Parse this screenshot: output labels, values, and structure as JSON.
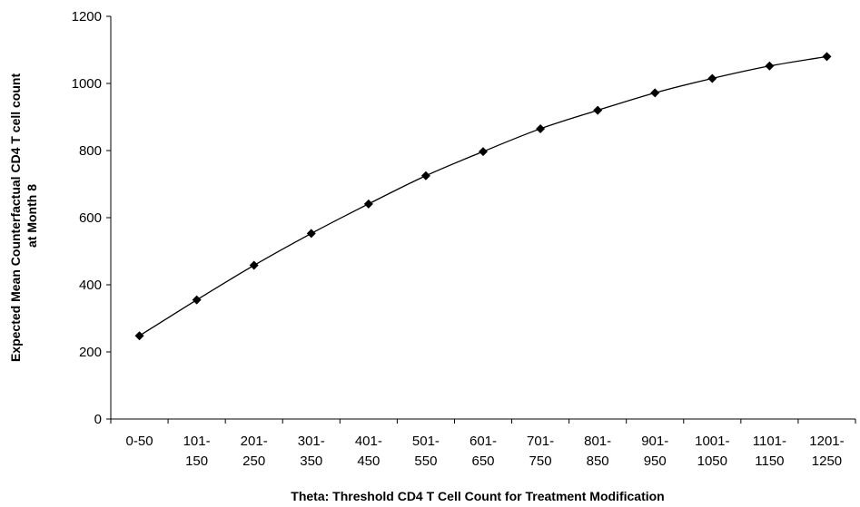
{
  "chart_data": {
    "type": "line",
    "title": "",
    "xlabel": "Theta: Threshold CD4 T Cell Count for Treatment Modification",
    "ylabel_line1": "Expected Mean Counterfactual CD4 T cell count",
    "ylabel_line2": "at Month 8",
    "ylim": [
      0,
      1200
    ],
    "yticks": [
      "0",
      "200",
      "400",
      "600",
      "800",
      "1000",
      "1200"
    ],
    "grid": false,
    "legend": "none",
    "categories": [
      [
        "0-50"
      ],
      [
        "101-",
        "150"
      ],
      [
        "201-",
        "250"
      ],
      [
        "301-",
        "350"
      ],
      [
        "401-",
        "450"
      ],
      [
        "501-",
        "550"
      ],
      [
        "601-",
        "650"
      ],
      [
        "701-",
        "750"
      ],
      [
        "801-",
        "850"
      ],
      [
        "901-",
        "950"
      ],
      [
        "1001-",
        "1050"
      ],
      [
        "1101-",
        "1150"
      ],
      [
        "1201-",
        "1250"
      ]
    ],
    "series": [
      {
        "values": [
          248,
          355,
          458,
          553,
          641,
          725,
          797,
          865,
          920,
          972,
          1015,
          1052,
          1080
        ]
      }
    ],
    "line_color": "#000000",
    "marker": "diamond"
  }
}
